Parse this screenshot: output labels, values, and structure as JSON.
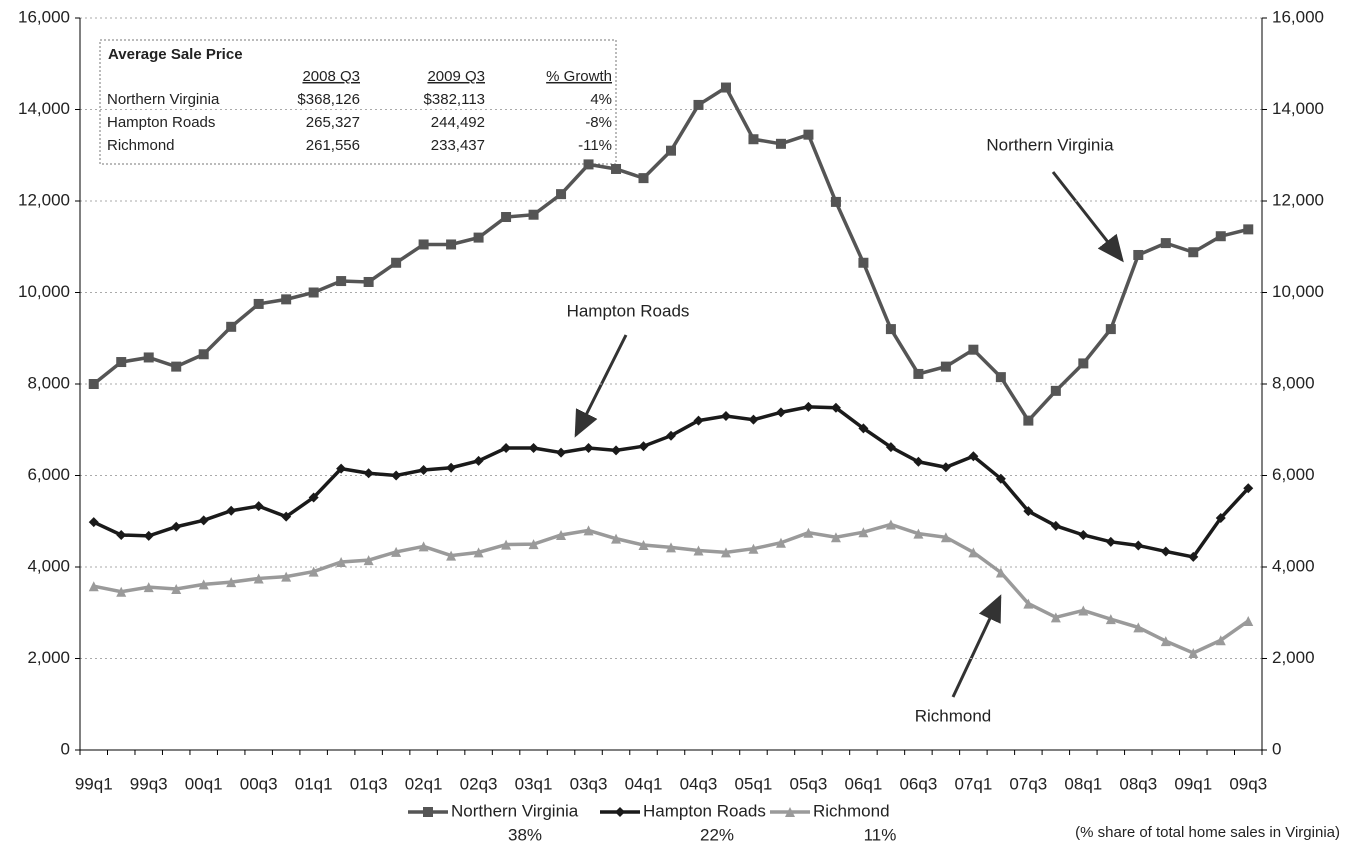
{
  "chart_data": {
    "type": "line",
    "categories": [
      "99q1",
      null,
      "99q3",
      null,
      "00q1",
      null,
      "00q3",
      null,
      "01q1",
      null,
      "01q3",
      null,
      "02q1",
      null,
      "02q3",
      null,
      "03q1",
      null,
      "03q3",
      null,
      "04q1",
      null,
      "04q3",
      null,
      "05q1",
      null,
      "05q3",
      null,
      "06q1",
      null,
      "06q3",
      null,
      "07q1",
      null,
      "07q3",
      null,
      "08q1",
      null,
      "08q3",
      null,
      "09q1",
      null,
      "09q3"
    ],
    "series": [
      {
        "name": "Northern Virginia",
        "share": "38%",
        "color": "#555555",
        "marker": "square",
        "values": [
          8000,
          8480,
          8580,
          8380,
          8650,
          9250,
          9750,
          9850,
          10000,
          10250,
          10230,
          10650,
          11050,
          11050,
          11200,
          11650,
          11700,
          12150,
          12800,
          12700,
          12500,
          13100,
          14100,
          14480,
          13350,
          13250,
          13450,
          11980,
          10650,
          9200,
          8220,
          8380,
          8750,
          8150,
          7200,
          7850,
          8450,
          9200,
          10820,
          11080,
          10880,
          11230,
          11380
        ]
      },
      {
        "name": "Hampton Roads",
        "share": "22%",
        "color": "#1a1a1a",
        "marker": "diamond",
        "values": [
          4980,
          4700,
          4680,
          4880,
          5020,
          5230,
          5330,
          5100,
          5520,
          6150,
          6050,
          6000,
          6120,
          6170,
          6320,
          6600,
          6600,
          6500,
          6600,
          6550,
          6640,
          6870,
          7200,
          7300,
          7220,
          7380,
          7500,
          7480,
          7030,
          6620,
          6300,
          6180,
          6420,
          5930,
          5220,
          4900,
          4700,
          4550,
          4470,
          4340,
          4220,
          5070,
          5720
        ]
      },
      {
        "name": "Richmond",
        "share": "11%",
        "color": "#9a9a9a",
        "marker": "triangle",
        "values": [
          3580,
          3460,
          3560,
          3520,
          3620,
          3670,
          3750,
          3790,
          3900,
          4110,
          4150,
          4330,
          4450,
          4250,
          4320,
          4490,
          4500,
          4700,
          4800,
          4620,
          4480,
          4430,
          4360,
          4320,
          4400,
          4530,
          4750,
          4650,
          4760,
          4930,
          4730,
          4650,
          4320,
          3880,
          3200,
          2900,
          3050,
          2860,
          2680,
          2380,
          2120,
          2400,
          2820
        ]
      }
    ],
    "ylim": [
      0,
      16000
    ],
    "yticks": [
      0,
      {
        "value": 2000,
        "label": "2,000"
      },
      {
        "value": 4000,
        "label": "4,000"
      },
      {
        "value": 6000,
        "label": "6,000"
      },
      {
        "value": 8000,
        "label": "8,000"
      },
      {
        "value": 10000,
        "label": "10,000"
      },
      {
        "value": 12000,
        "label": "12,000"
      },
      {
        "value": 14000,
        "label": "14,000"
      },
      {
        "value": 16000,
        "label": "16,000"
      }
    ],
    "y2lim": [
      0,
      16000
    ],
    "y2ticks": [
      0,
      {
        "value": 2000,
        "label": "2,000"
      },
      {
        "value": 4000,
        "label": "4,000"
      },
      {
        "value": 6000,
        "label": "6,000"
      },
      {
        "value": 8000,
        "label": "8,000"
      },
      {
        "value": 10000,
        "label": "10,000"
      },
      {
        "value": 12000,
        "label": "12,000"
      },
      {
        "value": 14000,
        "label": "14,000"
      },
      {
        "value": 16000,
        "label": "16,000"
      }
    ],
    "grid": true,
    "annotations": [
      "Northern Virginia",
      "Hampton Roads",
      "Richmond"
    ],
    "footnote": "(% share of total home sales in Virginia)",
    "table": {
      "title": "Average Sale Price",
      "columns": [
        "2008 Q3",
        "2009 Q3",
        "% Growth"
      ],
      "rows": [
        [
          "Northern Virginia",
          "$368,126",
          "$382,113",
          "4%"
        ],
        [
          "Hampton Roads",
          "265,327",
          "244,492",
          "-8%"
        ],
        [
          "Richmond",
          "261,556",
          "233,437",
          "-11%"
        ]
      ]
    }
  }
}
